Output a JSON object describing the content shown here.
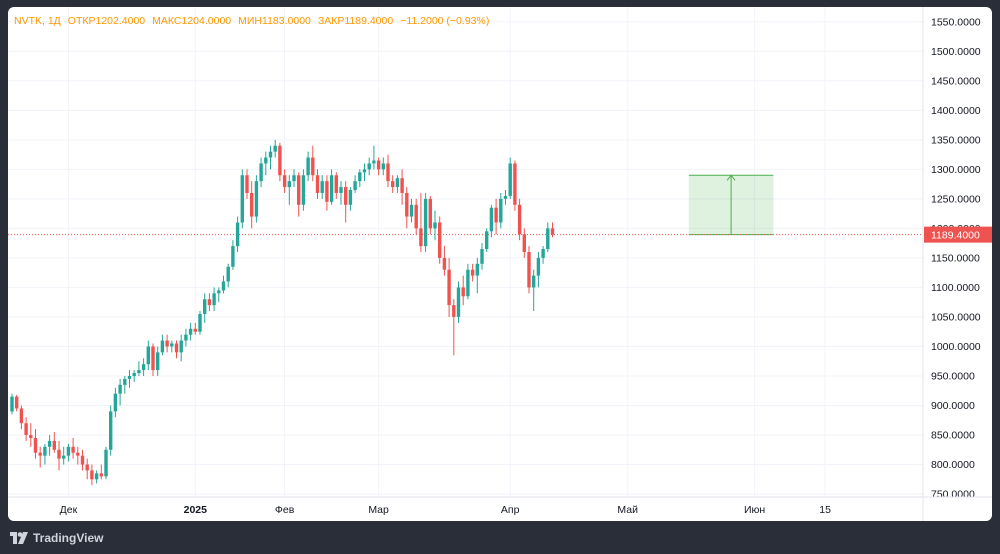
{
  "header": {
    "symbol": "NVTK, 1Д",
    "open_label": "ОТКР",
    "open": "1202.4000",
    "high_label": "МАКС",
    "high": "1204.0000",
    "low_label": "МИН",
    "low": "1183.0000",
    "close_label": "ЗАКР",
    "close": "1189.4000",
    "change": "−11.2000 (−0.93%)"
  },
  "footer": {
    "brand": "TradingView"
  },
  "chart_data": {
    "type": "candlestick",
    "title": "",
    "y_ticks": [
      "1550.0000",
      "1500.0000",
      "1450.0000",
      "1400.0000",
      "1350.0000",
      "1300.0000",
      "1250.0000",
      "1200.0000",
      "1150.0000",
      "1100.0000",
      "1050.0000",
      "1000.0000",
      "950.0000",
      "900.0000",
      "850.0000",
      "800.0000",
      "750.0000"
    ],
    "ylim": [
      745,
      1575
    ],
    "x_ticks": [
      {
        "label": "Дек",
        "bar": 12
      },
      {
        "label": "2025",
        "bar": 39
      },
      {
        "label": "Фев",
        "bar": 58
      },
      {
        "label": "Мар",
        "bar": 78
      },
      {
        "label": "Апр",
        "bar": 106
      },
      {
        "label": "Май",
        "bar": 131
      },
      {
        "label": "Июн",
        "bar": 158
      },
      {
        "label": "15",
        "bar": 173
      }
    ],
    "current_price": 1189.4,
    "current_price_label": "1189.4000",
    "up_color": "#26a69a",
    "down_color": "#ef5350",
    "candles": [
      [
        890,
        920,
        885,
        915
      ],
      [
        915,
        918,
        890,
        895
      ],
      [
        895,
        900,
        860,
        870
      ],
      [
        870,
        880,
        840,
        850
      ],
      [
        850,
        870,
        830,
        845
      ],
      [
        845,
        860,
        810,
        820
      ],
      [
        820,
        830,
        795,
        815
      ],
      [
        815,
        835,
        800,
        830
      ],
      [
        830,
        850,
        815,
        840
      ],
      [
        840,
        855,
        820,
        825
      ],
      [
        825,
        840,
        790,
        810
      ],
      [
        810,
        830,
        800,
        815
      ],
      [
        815,
        835,
        805,
        830
      ],
      [
        830,
        845,
        810,
        820
      ],
      [
        820,
        830,
        800,
        815
      ],
      [
        815,
        825,
        790,
        800
      ],
      [
        800,
        810,
        775,
        790
      ],
      [
        790,
        800,
        765,
        775
      ],
      [
        775,
        790,
        768,
        785
      ],
      [
        785,
        800,
        775,
        780
      ],
      [
        780,
        830,
        775,
        825
      ],
      [
        825,
        900,
        815,
        890
      ],
      [
        890,
        930,
        880,
        920
      ],
      [
        920,
        945,
        900,
        935
      ],
      [
        935,
        950,
        920,
        945
      ],
      [
        945,
        960,
        930,
        950
      ],
      [
        950,
        960,
        940,
        955
      ],
      [
        955,
        975,
        950,
        960
      ],
      [
        960,
        980,
        950,
        970
      ],
      [
        970,
        1010,
        960,
        1000
      ],
      [
        1000,
        1005,
        950,
        960
      ],
      [
        960,
        1000,
        950,
        990
      ],
      [
        990,
        1020,
        985,
        1010
      ],
      [
        1010,
        1020,
        990,
        1000
      ],
      [
        1000,
        1010,
        990,
        1005
      ],
      [
        1005,
        1010,
        980,
        990
      ],
      [
        990,
        1020,
        975,
        1010
      ],
      [
        1010,
        1030,
        1000,
        1020
      ],
      [
        1020,
        1040,
        1010,
        1030
      ],
      [
        1030,
        1040,
        1020,
        1025
      ],
      [
        1025,
        1060,
        1020,
        1055
      ],
      [
        1055,
        1090,
        1040,
        1080
      ],
      [
        1080,
        1090,
        1060,
        1070
      ],
      [
        1070,
        1100,
        1060,
        1090
      ],
      [
        1090,
        1100,
        1075,
        1095
      ],
      [
        1095,
        1120,
        1090,
        1110
      ],
      [
        1110,
        1140,
        1100,
        1135
      ],
      [
        1135,
        1180,
        1130,
        1170
      ],
      [
        1170,
        1220,
        1160,
        1210
      ],
      [
        1210,
        1300,
        1200,
        1290
      ],
      [
        1290,
        1300,
        1250,
        1260
      ],
      [
        1260,
        1280,
        1200,
        1220
      ],
      [
        1220,
        1290,
        1210,
        1280
      ],
      [
        1280,
        1320,
        1270,
        1310
      ],
      [
        1310,
        1330,
        1290,
        1320
      ],
      [
        1320,
        1340,
        1300,
        1330
      ],
      [
        1330,
        1350,
        1320,
        1340
      ],
      [
        1340,
        1345,
        1280,
        1290
      ],
      [
        1290,
        1300,
        1260,
        1270
      ],
      [
        1270,
        1290,
        1240,
        1280
      ],
      [
        1280,
        1300,
        1270,
        1290
      ],
      [
        1290,
        1295,
        1220,
        1240
      ],
      [
        1240,
        1300,
        1230,
        1290
      ],
      [
        1290,
        1330,
        1280,
        1320
      ],
      [
        1320,
        1340,
        1280,
        1290
      ],
      [
        1290,
        1300,
        1250,
        1260
      ],
      [
        1260,
        1290,
        1250,
        1280
      ],
      [
        1280,
        1290,
        1230,
        1245
      ],
      [
        1245,
        1300,
        1240,
        1290
      ],
      [
        1290,
        1295,
        1250,
        1260
      ],
      [
        1260,
        1280,
        1240,
        1270
      ],
      [
        1270,
        1280,
        1210,
        1240
      ],
      [
        1240,
        1270,
        1230,
        1265
      ],
      [
        1265,
        1290,
        1260,
        1280
      ],
      [
        1280,
        1300,
        1270,
        1295
      ],
      [
        1295,
        1310,
        1280,
        1300
      ],
      [
        1300,
        1320,
        1290,
        1310
      ],
      [
        1310,
        1340,
        1300,
        1315
      ],
      [
        1315,
        1320,
        1290,
        1300
      ],
      [
        1300,
        1320,
        1290,
        1310
      ],
      [
        1310,
        1325,
        1270,
        1280
      ],
      [
        1280,
        1290,
        1260,
        1270
      ],
      [
        1270,
        1290,
        1260,
        1285
      ],
      [
        1285,
        1300,
        1240,
        1260
      ],
      [
        1260,
        1270,
        1200,
        1220
      ],
      [
        1220,
        1250,
        1210,
        1240
      ],
      [
        1240,
        1250,
        1190,
        1200
      ],
      [
        1200,
        1260,
        1160,
        1170
      ],
      [
        1170,
        1260,
        1160,
        1250
      ],
      [
        1250,
        1255,
        1190,
        1200
      ],
      [
        1200,
        1230,
        1180,
        1210
      ],
      [
        1210,
        1220,
        1140,
        1150
      ],
      [
        1150,
        1170,
        1120,
        1130
      ],
      [
        1130,
        1150,
        1050,
        1070
      ],
      [
        1070,
        1080,
        985,
        1050
      ],
      [
        1050,
        1110,
        1040,
        1100
      ],
      [
        1100,
        1120,
        1070,
        1085
      ],
      [
        1085,
        1140,
        1080,
        1130
      ],
      [
        1130,
        1140,
        1110,
        1120
      ],
      [
        1120,
        1150,
        1090,
        1140
      ],
      [
        1140,
        1175,
        1130,
        1165
      ],
      [
        1165,
        1200,
        1160,
        1195
      ],
      [
        1195,
        1240,
        1185,
        1235
      ],
      [
        1235,
        1250,
        1190,
        1210
      ],
      [
        1210,
        1260,
        1200,
        1250
      ],
      [
        1250,
        1265,
        1240,
        1255
      ],
      [
        1255,
        1320,
        1250,
        1310
      ],
      [
        1310,
        1315,
        1230,
        1240
      ],
      [
        1240,
        1250,
        1180,
        1190
      ],
      [
        1190,
        1200,
        1150,
        1160
      ],
      [
        1160,
        1170,
        1090,
        1100
      ],
      [
        1100,
        1130,
        1060,
        1120
      ],
      [
        1120,
        1160,
        1100,
        1150
      ],
      [
        1150,
        1170,
        1140,
        1165
      ],
      [
        1165,
        1210,
        1160,
        1200
      ],
      [
        1200,
        1210,
        1185,
        1189.4
      ]
    ],
    "target_box": {
      "x_start_bar": 144,
      "x_end_bar": 162,
      "y_low": 1189.4,
      "y_high": 1290
    }
  }
}
